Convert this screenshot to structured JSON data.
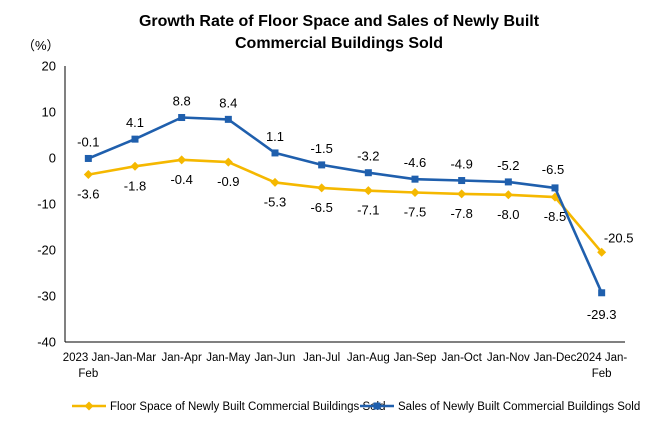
{
  "chart_data": {
    "type": "line",
    "title_lines": [
      "Growth Rate of Floor Space and Sales of Newly Built",
      "Commercial Buildings Sold"
    ],
    "unit": "（%）",
    "categories": [
      [
        "2023 Jan-",
        "Feb"
      ],
      [
        "Jan-Mar"
      ],
      [
        "Jan-Apr"
      ],
      [
        "Jan-May"
      ],
      [
        "Jan-Jun"
      ],
      [
        "Jan-Jul"
      ],
      [
        "Jan-Aug"
      ],
      [
        "Jan-Sep"
      ],
      [
        "Jan-Oct"
      ],
      [
        "Jan-Nov"
      ],
      [
        "Jan-Dec"
      ],
      [
        "2024 Jan-",
        "Feb"
      ]
    ],
    "ylim": [
      -40,
      20
    ],
    "yticks": [
      -40,
      -30,
      -20,
      -10,
      0,
      10,
      20
    ],
    "grid": false,
    "legend_position": "bottom",
    "series": [
      {
        "name": "Floor Space of Newly Built Commercial Buildings Sold",
        "marker": "diamond",
        "color": "#F5B800",
        "values": [
          -3.6,
          -1.8,
          -0.4,
          -0.9,
          -5.3,
          -6.5,
          -7.1,
          -7.5,
          -7.8,
          -8.0,
          -8.5,
          -20.5
        ],
        "labels": [
          "-3.6",
          "-1.8",
          "-0.4",
          "-0.9",
          "-5.3",
          "-6.5",
          "-7.1",
          "-7.5",
          "-7.8",
          "-8.0",
          "-8.5",
          "-20.5"
        ]
      },
      {
        "name": "Sales of Newly Built Commercial Buildings Sold",
        "marker": "square",
        "color": "#1F5FAD",
        "values": [
          -0.1,
          4.1,
          8.8,
          8.4,
          1.1,
          -1.5,
          -3.2,
          -4.6,
          -4.9,
          -5.2,
          -6.5,
          -29.3
        ],
        "labels": [
          "-0.1",
          "4.1",
          "8.8",
          "8.4",
          "1.1",
          "-1.5",
          "-3.2",
          "-4.6",
          "-4.9",
          "-5.2",
          "-6.5",
          "-29.3"
        ]
      }
    ]
  }
}
